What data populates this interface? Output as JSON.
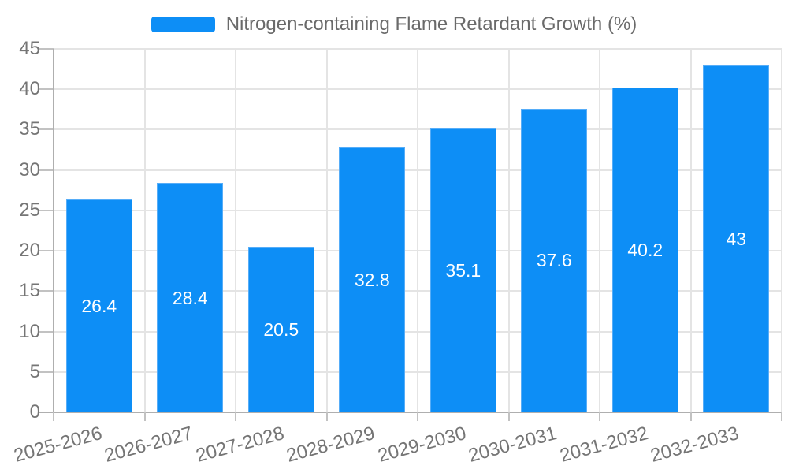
{
  "chart_data": {
    "type": "bar",
    "title": "Nitrogen-containing Flame Retardant Growth (%)",
    "legend_position": "top",
    "categories": [
      "2025-2026",
      "2026-2027",
      "2027-2028",
      "2028-2029",
      "2029-2030",
      "2030-2031",
      "2031-2032",
      "2032-2033"
    ],
    "values": [
      26.4,
      28.4,
      20.5,
      32.8,
      35.1,
      37.6,
      40.2,
      43
    ],
    "data_labels": [
      "26.4",
      "28.4",
      "20.5",
      "32.8",
      "35.1",
      "37.6",
      "40.2",
      "43"
    ],
    "xlabel": "",
    "ylabel": "",
    "ylim": [
      0,
      45
    ],
    "yticks": [
      0,
      5,
      10,
      15,
      20,
      25,
      30,
      35,
      40,
      45
    ],
    "grid": true,
    "colors": {
      "bar_fill": "#0D8EF6",
      "bar_border": "#56ADF8",
      "value_label": "#FFFFFF",
      "tick_label": "#757575",
      "legend_text": "#6A6A6A",
      "grid_line": "#E4E4E4",
      "axis_line": "#AFAFAF",
      "tick_mark": "#C2C2C2",
      "background": "#FFFFFF"
    }
  }
}
